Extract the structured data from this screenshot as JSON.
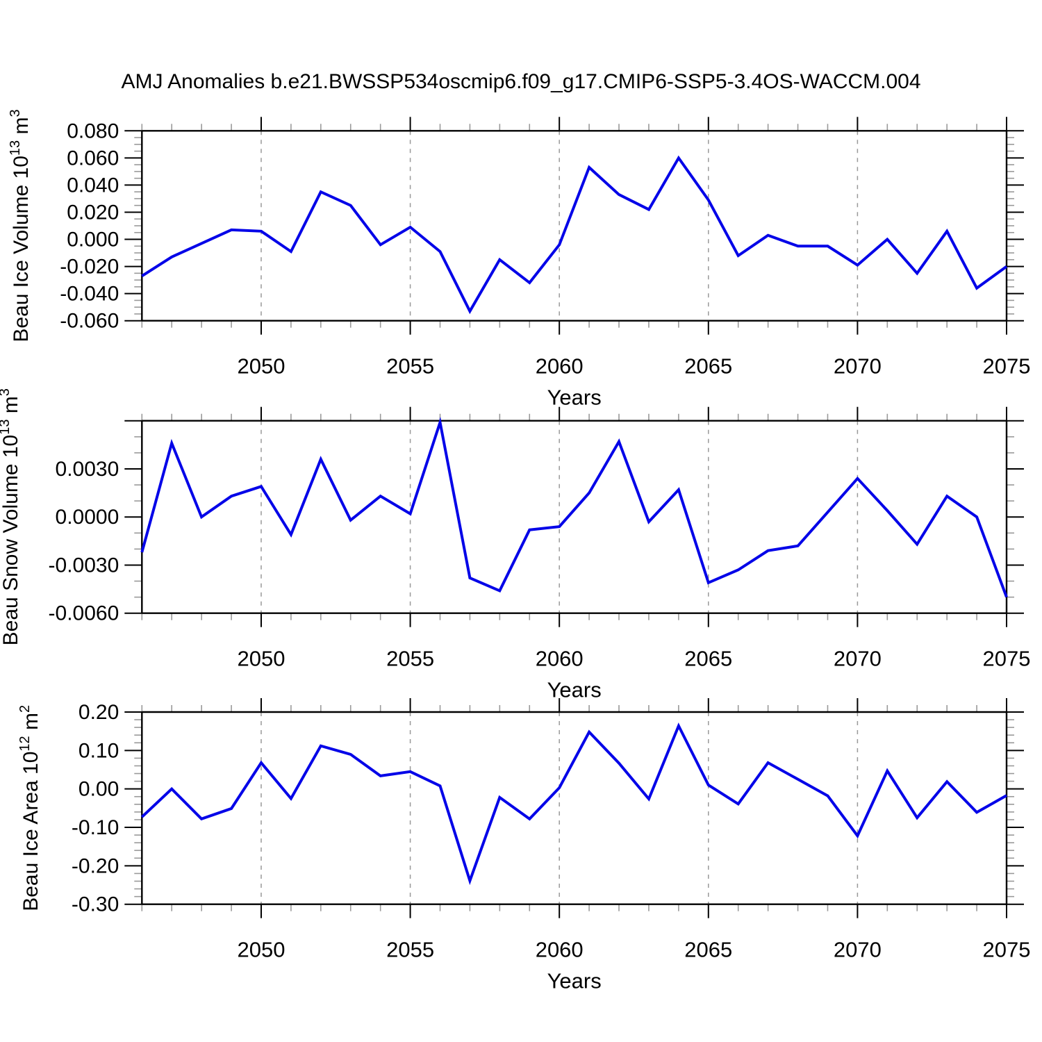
{
  "title": "AMJ Anomalies b.e21.BWSSP534oscmip6.f09_g17.CMIP6-SSP5-3.4OS-WACCM.004",
  "line_color": "#0404E8",
  "x_axis": {
    "label": "Years",
    "range": [
      2046,
      2075
    ],
    "major_tick_labels": [
      "2050",
      "2055",
      "2060",
      "2065",
      "2070",
      "2075"
    ],
    "major_ticks": [
      2050,
      2055,
      2060,
      2065,
      2070,
      2075
    ],
    "gridline_years": [
      2050,
      2055,
      2060,
      2065,
      2070
    ],
    "minor_step": 1
  },
  "chart_data": [
    {
      "type": "line",
      "name": "beau-ice-volume",
      "ylabel_text": "Beau Ice Volume 10^13 m^3",
      "ylabel_segments": [
        {
          "t": "Beau Ice Volume 10"
        },
        {
          "t": "13",
          "sup": true
        },
        {
          "t": " m"
        },
        {
          "t": "3",
          "sup": true
        }
      ],
      "ylim": [
        -0.06,
        0.08
      ],
      "yticks": [
        {
          "v": 0.08,
          "label": "0.080"
        },
        {
          "v": 0.06,
          "label": "0.060"
        },
        {
          "v": 0.04,
          "label": "0.040"
        },
        {
          "v": 0.02,
          "label": "0.020"
        },
        {
          "v": 0.0,
          "label": "0.000"
        },
        {
          "v": -0.02,
          "label": "-0.020"
        },
        {
          "v": -0.04,
          "label": "-0.040"
        },
        {
          "v": -0.06,
          "label": "-0.060"
        }
      ],
      "yminor_step": 0.005,
      "x": [
        2046,
        2047,
        2048,
        2049,
        2050,
        2051,
        2052,
        2053,
        2054,
        2055,
        2056,
        2057,
        2058,
        2059,
        2060,
        2061,
        2062,
        2063,
        2064,
        2065,
        2066,
        2067,
        2068,
        2069,
        2070,
        2071,
        2072,
        2073,
        2074,
        2075
      ],
      "values": [
        -0.027,
        -0.013,
        -0.003,
        0.007,
        0.006,
        -0.009,
        0.035,
        0.025,
        -0.004,
        0.009,
        -0.009,
        -0.053,
        -0.015,
        -0.032,
        -0.004,
        0.053,
        0.033,
        0.022,
        0.06,
        0.029,
        -0.012,
        0.003,
        -0.005,
        -0.005,
        -0.019,
        0.0,
        -0.025,
        0.006,
        -0.036,
        -0.02
      ]
    },
    {
      "type": "line",
      "name": "beau-snow-volume",
      "ylabel_text": "Beau Snow Volume 10^13 m^3",
      "ylabel_segments": [
        {
          "t": "Beau Snow Volume 10"
        },
        {
          "t": "13",
          "sup": true
        },
        {
          "t": " m"
        },
        {
          "t": "3",
          "sup": true
        }
      ],
      "ylim": [
        -0.006,
        0.006
      ],
      "yticks": [
        {
          "v": 0.006,
          "label": ""
        },
        {
          "v": 0.003,
          "label": "0.0030"
        },
        {
          "v": 0.0,
          "label": "0.0000"
        },
        {
          "v": -0.003,
          "label": "-0.0030"
        },
        {
          "v": -0.006,
          "label": "-0.0060"
        }
      ],
      "yminor_step": 0.001,
      "x": [
        2046,
        2047,
        2048,
        2049,
        2050,
        2051,
        2052,
        2053,
        2054,
        2055,
        2056,
        2057,
        2058,
        2059,
        2060,
        2061,
        2062,
        2063,
        2064,
        2065,
        2066,
        2067,
        2068,
        2069,
        2070,
        2071,
        2072,
        2073,
        2074,
        2075
      ],
      "values": [
        -0.0022,
        0.0046,
        0.0,
        0.0013,
        0.0019,
        -0.0011,
        0.0036,
        -0.0002,
        0.0013,
        0.0002,
        0.0059,
        -0.0038,
        -0.0046,
        -0.0008,
        -0.0006,
        0.0015,
        0.0047,
        -0.0003,
        0.0017,
        -0.0041,
        -0.0033,
        -0.0021,
        -0.0018,
        0.0003,
        0.0024,
        0.0004,
        -0.0017,
        0.0013,
        0.0,
        -0.005
      ]
    },
    {
      "type": "line",
      "name": "beau-ice-area",
      "ylabel_text": "Beau Ice Area 10^12 m^2",
      "ylabel_segments": [
        {
          "t": "Beau Ice Area 10"
        },
        {
          "t": "12",
          "sup": true
        },
        {
          "t": " m"
        },
        {
          "t": "2",
          "sup": true
        }
      ],
      "ylim": [
        -0.3,
        0.2
      ],
      "yticks": [
        {
          "v": 0.2,
          "label": "0.20"
        },
        {
          "v": 0.1,
          "label": "0.10"
        },
        {
          "v": 0.0,
          "label": "0.00"
        },
        {
          "v": -0.1,
          "label": "-0.10"
        },
        {
          "v": -0.2,
          "label": "-0.20"
        },
        {
          "v": -0.3,
          "label": "-0.30"
        }
      ],
      "yminor_step": 0.02,
      "x": [
        2046,
        2047,
        2048,
        2049,
        2050,
        2051,
        2052,
        2053,
        2054,
        2055,
        2056,
        2057,
        2058,
        2059,
        2060,
        2061,
        2062,
        2063,
        2064,
        2065,
        2066,
        2067,
        2068,
        2069,
        2070,
        2071,
        2072,
        2073,
        2074,
        2075
      ],
      "values": [
        -0.073,
        0.0,
        -0.078,
        -0.051,
        0.068,
        -0.025,
        0.112,
        0.09,
        0.034,
        0.045,
        0.008,
        -0.239,
        -0.022,
        -0.078,
        0.003,
        0.148,
        0.067,
        -0.026,
        0.164,
        0.01,
        -0.039,
        0.068,
        0.025,
        -0.018,
        -0.122,
        0.047,
        -0.075,
        0.019,
        -0.061,
        -0.017
      ]
    }
  ]
}
